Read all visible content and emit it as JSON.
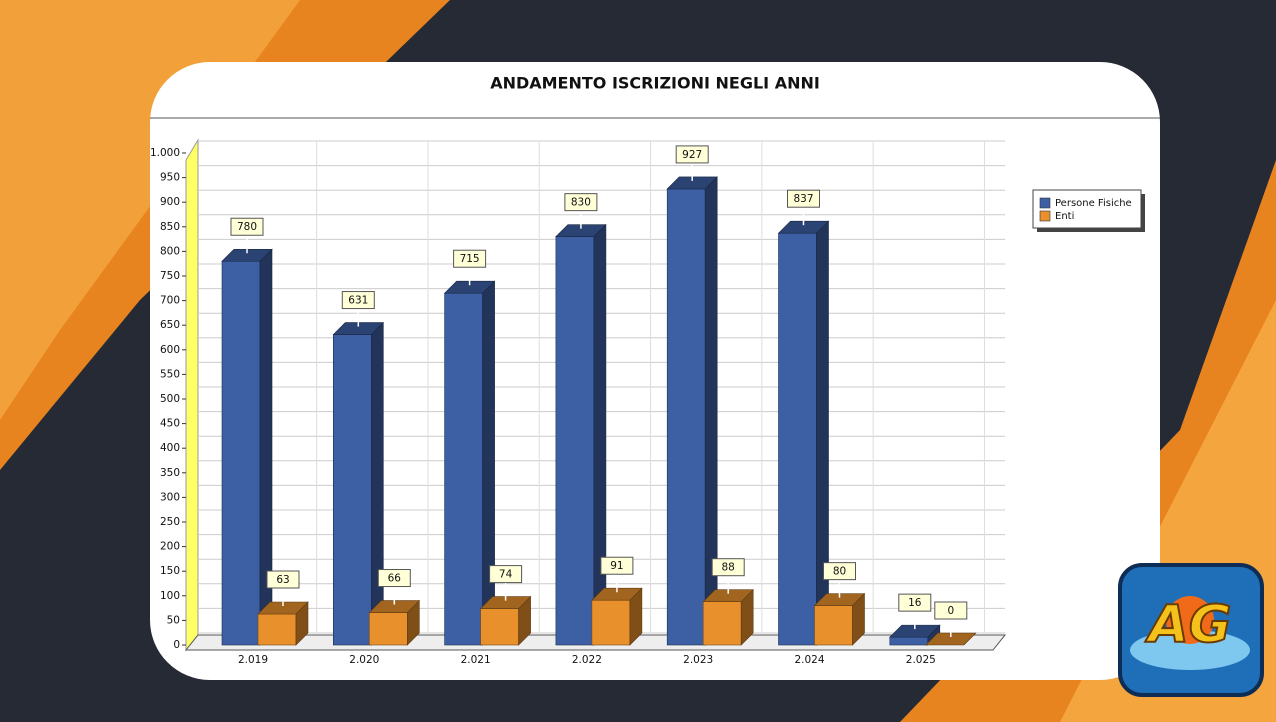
{
  "chart_data": {
    "type": "bar3d",
    "title": "ANDAMENTO ISCRIZIONI NEGLI ANNI",
    "categories": [
      "2.019",
      "2.020",
      "2.021",
      "2.022",
      "2.023",
      "2.024",
      "2.025"
    ],
    "series": [
      {
        "name": "Persone Fisiche",
        "color": "#3d5fa3",
        "values": [
          780,
          631,
          715,
          830,
          927,
          837,
          16
        ]
      },
      {
        "name": "Enti",
        "color": "#e8902c",
        "values": [
          63,
          66,
          74,
          91,
          88,
          80,
          0
        ]
      }
    ],
    "ylim": [
      0,
      1000
    ],
    "yticks": [
      0,
      50,
      100,
      150,
      200,
      250,
      300,
      350,
      400,
      450,
      500,
      550,
      600,
      650,
      700,
      750,
      800,
      850,
      900,
      950,
      {
        "value": 1000,
        "label": "1.000"
      }
    ],
    "grid": true,
    "legend": "right"
  },
  "logo": "AG"
}
